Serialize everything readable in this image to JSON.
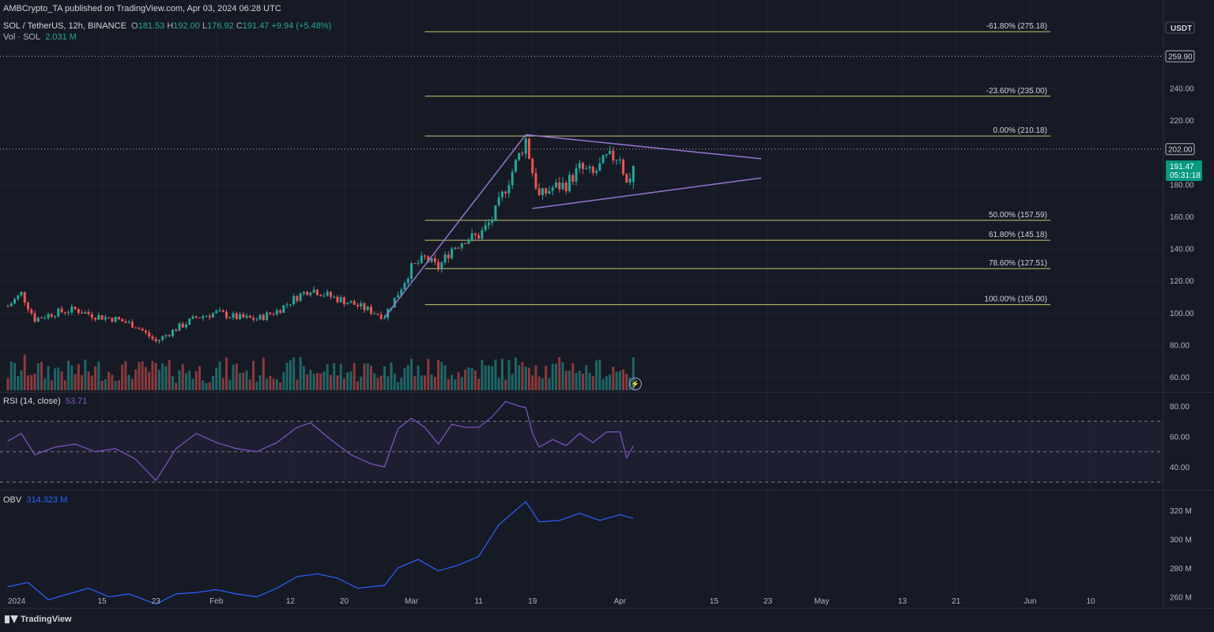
{
  "header": {
    "published": "AMBCrypto_TA published on TradingView.com, Apr 03, 2024 06:28 UTC",
    "symbol": "SOL / TetherUS, 12h, BINANCE",
    "o_label": "O",
    "o": "181.53",
    "h_label": "H",
    "h": "192.00",
    "l_label": "L",
    "l": "176.92",
    "c_label": "C",
    "c": "191.47",
    "change": "+9.94 (+5.48%)",
    "vol_label": "Vol · SOL",
    "vol": "2.031 M",
    "rsi_label": "RSI (14, close)",
    "rsi": "53.71",
    "obv_label": "OBV",
    "obv": "314.323 M"
  },
  "colors": {
    "background": "#161a25",
    "up": "#26a69a",
    "down": "#ef5350",
    "fib": "#c9c474",
    "triangle": "#9575cd",
    "rsi": "#7e57c2",
    "obv": "#2962ff",
    "price_tag": "#089981"
  },
  "footer": {
    "brand": "TradingView",
    "icon": "tradingview-logo-icon"
  },
  "chart_data": {
    "type": "candlestick",
    "symbol": "SOL / TetherUS",
    "interval": "12h",
    "exchange": "BINANCE",
    "currency": "USDT",
    "price_axis_ticks": [
      240,
      220,
      180,
      160,
      140,
      120,
      100,
      80,
      60
    ],
    "x_tick_labels": [
      {
        "label": "2024",
        "date": "2024-01-01"
      },
      {
        "label": "15",
        "date": "2024-01-15"
      },
      {
        "label": "23",
        "date": "2024-01-23"
      },
      {
        "label": "Feb",
        "date": "2024-02-01"
      },
      {
        "label": "12",
        "date": "2024-02-12"
      },
      {
        "label": "20",
        "date": "2024-02-20"
      },
      {
        "label": "Mar",
        "date": "2024-03-01"
      },
      {
        "label": "11",
        "date": "2024-03-11"
      },
      {
        "label": "19",
        "date": "2024-03-19"
      },
      {
        "label": "Apr",
        "date": "2024-04-01"
      },
      {
        "label": "15",
        "date": "2024-04-15"
      },
      {
        "label": "23",
        "date": "2024-04-23"
      },
      {
        "label": "May",
        "date": "2024-05-01"
      },
      {
        "label": "13",
        "date": "2024-05-13"
      },
      {
        "label": "21",
        "date": "2024-05-21"
      },
      {
        "label": "Jun",
        "date": "2024-06-01"
      },
      {
        "label": "10",
        "date": "2024-06-10"
      }
    ],
    "price_path": [
      [
        "2024-01-01",
        104
      ],
      [
        "2024-01-03",
        112
      ],
      [
        "2024-01-05",
        96
      ],
      [
        "2024-01-08",
        100
      ],
      [
        "2024-01-11",
        102
      ],
      [
        "2024-01-14",
        98
      ],
      [
        "2024-01-17",
        96
      ],
      [
        "2024-01-20",
        92
      ],
      [
        "2024-01-23",
        82
      ],
      [
        "2024-01-26",
        90
      ],
      [
        "2024-01-29",
        97
      ],
      [
        "2024-02-01",
        100
      ],
      [
        "2024-02-04",
        97
      ],
      [
        "2024-02-07",
        96
      ],
      [
        "2024-02-10",
        101
      ],
      [
        "2024-02-13",
        110
      ],
      [
        "2024-02-15",
        115
      ],
      [
        "2024-02-18",
        110
      ],
      [
        "2024-02-21",
        106
      ],
      [
        "2024-02-24",
        101
      ],
      [
        "2024-02-26",
        98
      ],
      [
        "2024-02-28",
        112
      ],
      [
        "2024-03-01",
        128
      ],
      [
        "2024-03-03",
        134
      ],
      [
        "2024-03-05",
        128
      ],
      [
        "2024-03-07",
        140
      ],
      [
        "2024-03-09",
        146
      ],
      [
        "2024-03-11",
        148
      ],
      [
        "2024-03-13",
        158
      ],
      [
        "2024-03-15",
        178
      ],
      [
        "2024-03-17",
        198
      ],
      [
        "2024-03-18",
        208
      ],
      [
        "2024-03-19",
        188
      ],
      [
        "2024-03-20",
        172
      ],
      [
        "2024-03-22",
        178
      ],
      [
        "2024-03-24",
        180
      ],
      [
        "2024-03-26",
        190
      ],
      [
        "2024-03-28",
        186
      ],
      [
        "2024-03-30",
        196
      ],
      [
        "2024-04-01",
        198
      ],
      [
        "2024-04-02",
        180
      ],
      [
        "2024-04-03",
        191.47
      ]
    ],
    "last_candle": {
      "open": 181.53,
      "high": 192.0,
      "low": 176.92,
      "close": 191.47
    },
    "price_labels": [
      {
        "text": "USDT",
        "kind": "currency"
      },
      {
        "text": "259.90",
        "value": 259.9,
        "kind": "level"
      },
      {
        "text": "202.00",
        "value": 202.0,
        "kind": "level"
      },
      {
        "text": "191.47",
        "value": 191.47,
        "kind": "current"
      },
      {
        "text": "05:31:18",
        "kind": "countdown"
      }
    ],
    "fibonacci": {
      "from_date": "2024-03-03",
      "to_date": "2024-06-04",
      "levels": [
        {
          "label": "-61.80% (275.18)",
          "value": 275.18
        },
        {
          "label": "-23.60% (235.00)",
          "value": 235.0
        },
        {
          "label": "0.00% (210.18)",
          "value": 210.18
        },
        {
          "label": "50.00% (157.59)",
          "value": 157.59
        },
        {
          "label": "61.80% (145.18)",
          "value": 145.18
        },
        {
          "label": "78.60% (127.51)",
          "value": 127.51
        },
        {
          "label": "100.00% (105.00)",
          "value": 105.0
        }
      ]
    },
    "trendlines": [
      {
        "from": [
          "2024-02-26",
          97
        ],
        "to": [
          "2024-03-18",
          211
        ]
      },
      {
        "from": [
          "2024-03-18",
          211
        ],
        "to": [
          "2024-04-22",
          196
        ]
      },
      {
        "from": [
          "2024-03-19",
          165
        ],
        "to": [
          "2024-04-22",
          184
        ]
      }
    ],
    "volume_panel": {
      "last": "2.031 M"
    },
    "rsi_panel": {
      "ticks": [
        80,
        60,
        40
      ],
      "overbought": 70,
      "middle": 50,
      "oversold": 30,
      "last": 53.71,
      "path": [
        [
          "2024-01-01",
          57
        ],
        [
          "2024-01-03",
          62
        ],
        [
          "2024-01-05",
          48
        ],
        [
          "2024-01-08",
          53
        ],
        [
          "2024-01-11",
          55
        ],
        [
          "2024-01-14",
          50
        ],
        [
          "2024-01-17",
          52
        ],
        [
          "2024-01-20",
          45
        ],
        [
          "2024-01-23",
          31
        ],
        [
          "2024-01-26",
          52
        ],
        [
          "2024-01-29",
          62
        ],
        [
          "2024-02-01",
          56
        ],
        [
          "2024-02-04",
          52
        ],
        [
          "2024-02-07",
          50
        ],
        [
          "2024-02-10",
          56
        ],
        [
          "2024-02-13",
          66
        ],
        [
          "2024-02-15",
          69
        ],
        [
          "2024-02-18",
          58
        ],
        [
          "2024-02-21",
          48
        ],
        [
          "2024-02-24",
          42
        ],
        [
          "2024-02-26",
          40
        ],
        [
          "2024-02-28",
          65
        ],
        [
          "2024-03-01",
          72
        ],
        [
          "2024-03-03",
          66
        ],
        [
          "2024-03-05",
          55
        ],
        [
          "2024-03-07",
          68
        ],
        [
          "2024-03-09",
          66
        ],
        [
          "2024-03-11",
          66
        ],
        [
          "2024-03-13",
          73
        ],
        [
          "2024-03-15",
          83
        ],
        [
          "2024-03-17",
          80
        ],
        [
          "2024-03-18",
          79
        ],
        [
          "2024-03-19",
          62
        ],
        [
          "2024-03-20",
          53
        ],
        [
          "2024-03-22",
          58
        ],
        [
          "2024-03-24",
          54
        ],
        [
          "2024-03-26",
          62
        ],
        [
          "2024-03-28",
          56
        ],
        [
          "2024-03-30",
          63
        ],
        [
          "2024-04-01",
          63
        ],
        [
          "2024-04-02",
          46
        ],
        [
          "2024-04-03",
          53.71
        ]
      ]
    },
    "obv_panel": {
      "ticks": [
        320,
        300,
        280,
        260
      ],
      "unit": "M",
      "last": 314.323,
      "path": [
        [
          "2024-01-01",
          267
        ],
        [
          "2024-01-04",
          270
        ],
        [
          "2024-01-07",
          258
        ],
        [
          "2024-01-10",
          262
        ],
        [
          "2024-01-13",
          266
        ],
        [
          "2024-01-16",
          260
        ],
        [
          "2024-01-19",
          262
        ],
        [
          "2024-01-23",
          255
        ],
        [
          "2024-01-26",
          262
        ],
        [
          "2024-01-29",
          263
        ],
        [
          "2024-02-01",
          265
        ],
        [
          "2024-02-04",
          262
        ],
        [
          "2024-02-07",
          260
        ],
        [
          "2024-02-10",
          266
        ],
        [
          "2024-02-13",
          274
        ],
        [
          "2024-02-16",
          276
        ],
        [
          "2024-02-19",
          273
        ],
        [
          "2024-02-22",
          266
        ],
        [
          "2024-02-26",
          268
        ],
        [
          "2024-02-28",
          280
        ],
        [
          "2024-03-02",
          286
        ],
        [
          "2024-03-05",
          278
        ],
        [
          "2024-03-08",
          282
        ],
        [
          "2024-03-11",
          288
        ],
        [
          "2024-03-14",
          310
        ],
        [
          "2024-03-17",
          322
        ],
        [
          "2024-03-18",
          326
        ],
        [
          "2024-03-20",
          312
        ],
        [
          "2024-03-23",
          313
        ],
        [
          "2024-03-26",
          318
        ],
        [
          "2024-03-29",
          313
        ],
        [
          "2024-04-01",
          317
        ],
        [
          "2024-04-03",
          314.323
        ]
      ]
    },
    "grid": true,
    "legend": "top-left"
  }
}
